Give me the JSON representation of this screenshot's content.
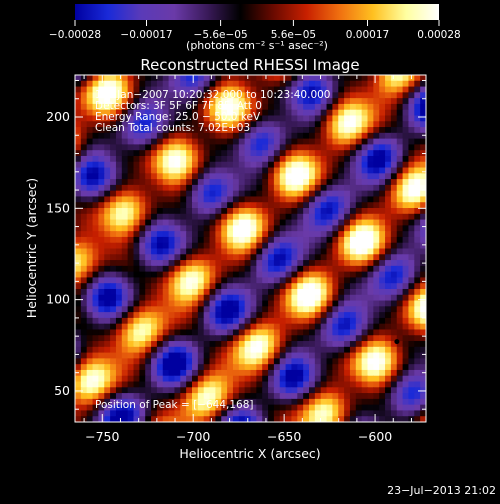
{
  "chart_data": {
    "type": "heatmap",
    "title": "Reconstructed RHESSI Image",
    "xlabel": "Heliocentric X (arcsec)",
    "ylabel": "Heliocentric Y (arcsec)",
    "xlim": [
      -765,
      -572
    ],
    "ylim": [
      33,
      223
    ],
    "xticks": [
      -750,
      -700,
      -650,
      -600
    ],
    "yticks": [
      50,
      100,
      150,
      200
    ],
    "xtick_labels": [
      "−750",
      "−700",
      "−650",
      "−600"
    ],
    "ytick_labels": [
      "50",
      "100",
      "150",
      "200"
    ],
    "colorbar": {
      "range": [
        -0.00028,
        0.00028
      ],
      "ticks": [
        -0.00028,
        -0.00017,
        -5.6e-05,
        5.6e-05,
        0.00017,
        0.00028
      ],
      "tick_labels": [
        "−0.00028",
        "−0.00017",
        "−5.6e−05",
        "5.6e−05",
        "0.00017",
        "0.00028"
      ],
      "unit_text": "(photons cm⁻² s⁻¹ asec⁻²)"
    },
    "annotations": [
      "15−Jan−2007 10:20:32.000 to 10:23:40.000",
      "Detectors: 3F 5F 6F 7F 8F, Att 0",
      "Energy Range: 25.0 − 50.0 keV",
      "Clean     Total counts: 7.02E+03"
    ],
    "peak_text": "Position of Peak = [−644,168]",
    "peak": [
      -644,
      168
    ],
    "marker": [
      -588,
      77
    ],
    "footer": "23−Jul−2013 21:02",
    "colormap": [
      "#0000a0",
      "#1a2ad8",
      "#5a3ab8",
      "#6a3aa8",
      "#3a1a5a",
      "#000000",
      "#6a0a00",
      "#c82000",
      "#f07010",
      "#ffc020",
      "#ffffa0",
      "#ffffff"
    ]
  }
}
